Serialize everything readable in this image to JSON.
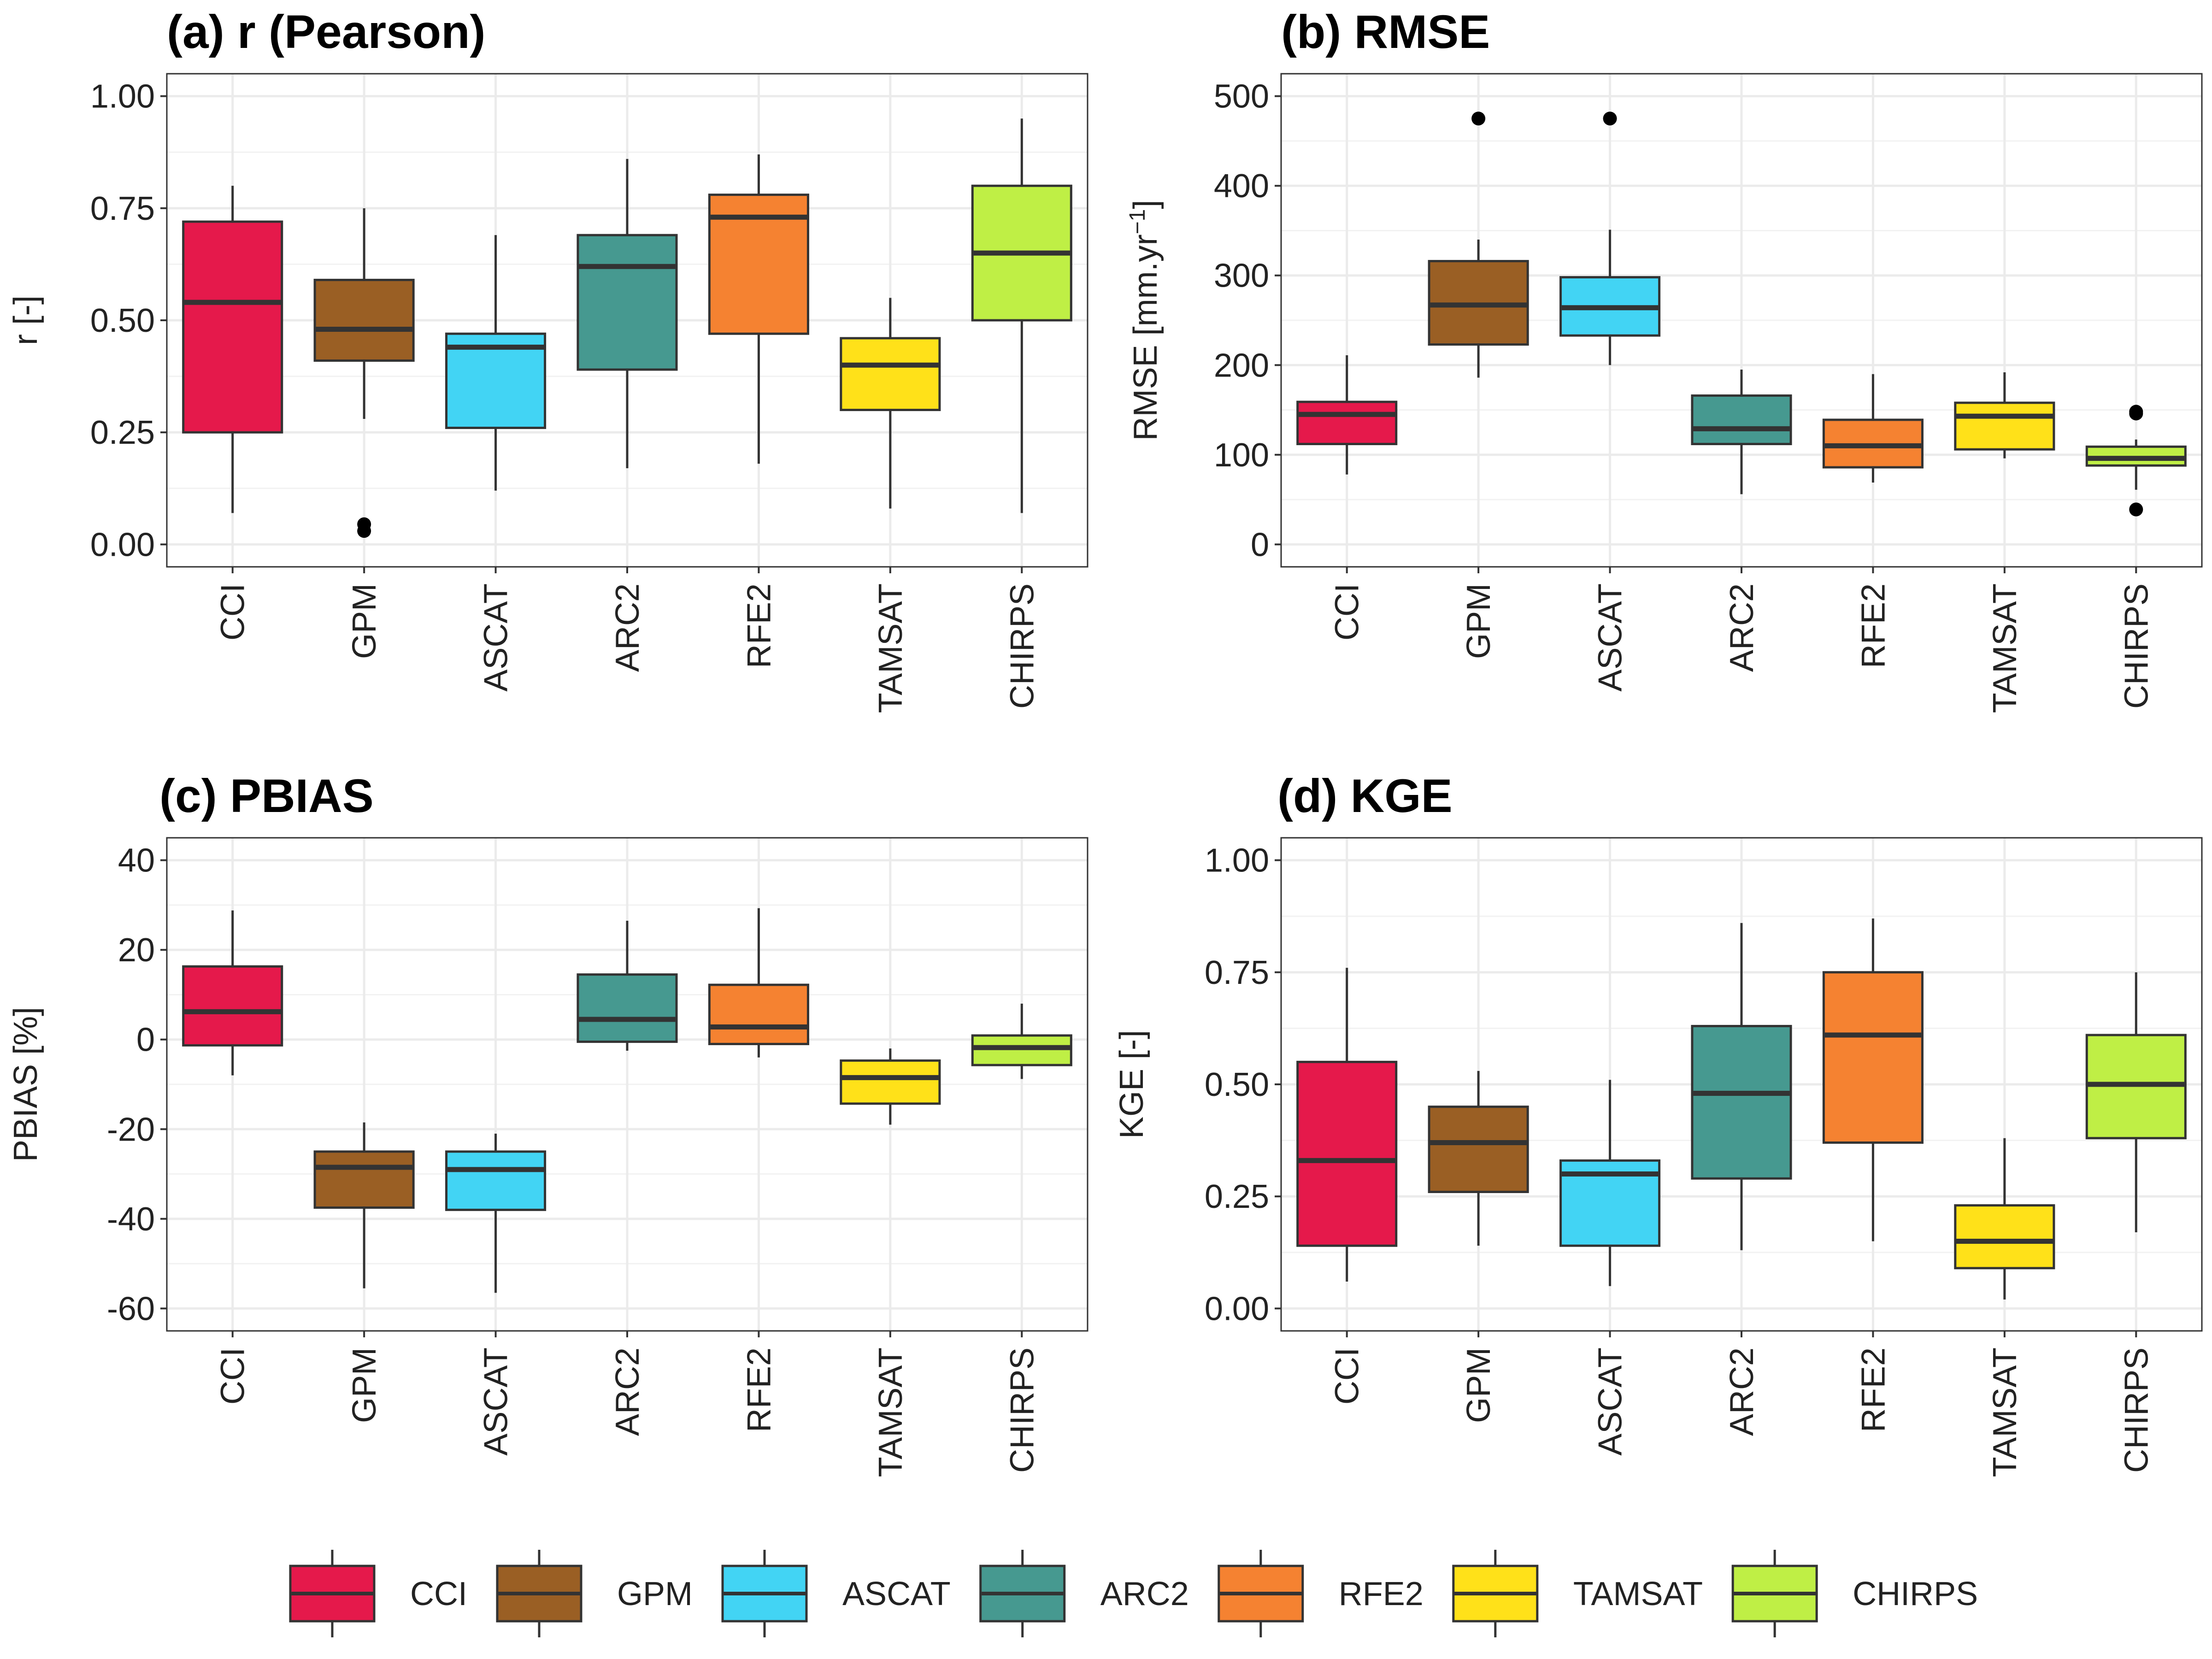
{
  "chart_data": [
    {
      "type": "box",
      "title": "(a) r (Pearson)",
      "xlabel": "",
      "ylabel": "r [-]",
      "ylim": [
        -0.05,
        1.05
      ],
      "yticks": [
        0.0,
        0.25,
        0.5,
        0.75,
        1.0
      ],
      "ytick_labels": [
        "0.00",
        "0.25",
        "0.50",
        "0.75",
        "1.00"
      ],
      "grid": true,
      "categories": [
        "CCI",
        "GPM",
        "ASCAT",
        "ARC2",
        "RFE2",
        "TAMSAT",
        "CHIRPS"
      ],
      "boxes": [
        {
          "min": 0.07,
          "q1": 0.25,
          "median": 0.54,
          "q3": 0.72,
          "max": 0.8,
          "outliers": []
        },
        {
          "min": 0.28,
          "q1": 0.41,
          "median": 0.48,
          "q3": 0.59,
          "max": 0.75,
          "outliers": [
            0.03,
            0.045
          ]
        },
        {
          "min": 0.12,
          "q1": 0.26,
          "median": 0.44,
          "q3": 0.47,
          "max": 0.69,
          "outliers": []
        },
        {
          "min": 0.17,
          "q1": 0.39,
          "median": 0.62,
          "q3": 0.69,
          "max": 0.86,
          "outliers": []
        },
        {
          "min": 0.18,
          "q1": 0.47,
          "median": 0.73,
          "q3": 0.78,
          "max": 0.87,
          "outliers": []
        },
        {
          "min": 0.08,
          "q1": 0.3,
          "median": 0.4,
          "q3": 0.46,
          "max": 0.55,
          "outliers": []
        },
        {
          "min": 0.07,
          "q1": 0.5,
          "median": 0.65,
          "q3": 0.8,
          "max": 0.95,
          "outliers": []
        }
      ]
    },
    {
      "type": "box",
      "title": "(b) RMSE",
      "xlabel": "",
      "ylabel": "RMSE [mm.yr",
      "ylabel_sup": "−1",
      "ylabel_end": "]",
      "ylim": [
        -25,
        525
      ],
      "yticks": [
        0,
        100,
        200,
        300,
        400,
        500
      ],
      "ytick_labels": [
        "0",
        "100",
        "200",
        "300",
        "400",
        "500"
      ],
      "grid": true,
      "categories": [
        "CCI",
        "GPM",
        "ASCAT",
        "ARC2",
        "RFE2",
        "TAMSAT",
        "CHIRPS"
      ],
      "boxes": [
        {
          "min": 78,
          "q1": 112,
          "median": 145,
          "q3": 159,
          "max": 211,
          "outliers": []
        },
        {
          "min": 186,
          "q1": 223,
          "median": 267,
          "q3": 316,
          "max": 340,
          "outliers": [
            475
          ]
        },
        {
          "min": 200,
          "q1": 233,
          "median": 264,
          "q3": 298,
          "max": 351,
          "outliers": [
            475
          ]
        },
        {
          "min": 56,
          "q1": 112,
          "median": 129,
          "q3": 166,
          "max": 195,
          "outliers": []
        },
        {
          "min": 69,
          "q1": 86,
          "median": 110,
          "q3": 139,
          "max": 190,
          "outliers": []
        },
        {
          "min": 96,
          "q1": 106,
          "median": 143,
          "q3": 158,
          "max": 192,
          "outliers": []
        },
        {
          "min": 61,
          "q1": 88,
          "median": 96,
          "q3": 109,
          "max": 117,
          "outliers": [
            146,
            148,
            39
          ]
        }
      ]
    },
    {
      "type": "box",
      "title": "(c) PBIAS",
      "xlabel": "",
      "ylabel": "PBIAS [%]",
      "ylim": [
        -65,
        45
      ],
      "yticks": [
        -60,
        -40,
        -20,
        0,
        20,
        40
      ],
      "ytick_labels": [
        "-60",
        "-40",
        "-20",
        "0",
        "20",
        "40"
      ],
      "grid": true,
      "categories": [
        "CCI",
        "GPM",
        "ASCAT",
        "ARC2",
        "RFE2",
        "TAMSAT",
        "CHIRPS"
      ],
      "boxes": [
        {
          "min": -8,
          "q1": -1.3,
          "median": 6.2,
          "q3": 16.3,
          "max": 28.8,
          "outliers": []
        },
        {
          "min": -55.5,
          "q1": -37.5,
          "median": -28.5,
          "q3": -25,
          "max": -18.5,
          "outliers": []
        },
        {
          "min": -56.5,
          "q1": -38,
          "median": -29,
          "q3": -25,
          "max": -21,
          "outliers": []
        },
        {
          "min": -2.5,
          "q1": -0.5,
          "median": 4.5,
          "q3": 14.5,
          "max": 26.5,
          "outliers": []
        },
        {
          "min": -4,
          "q1": -1,
          "median": 2.8,
          "q3": 12.2,
          "max": 29.3,
          "outliers": []
        },
        {
          "min": -19,
          "q1": -14.3,
          "median": -8.5,
          "q3": -4.7,
          "max": -2,
          "outliers": []
        },
        {
          "min": -8.8,
          "q1": -5.7,
          "median": -1.8,
          "q3": 0.9,
          "max": 8,
          "outliers": []
        }
      ]
    },
    {
      "type": "box",
      "title": "(d) KGE",
      "xlabel": "",
      "ylabel": "KGE [-]",
      "ylim": [
        -0.05,
        1.05
      ],
      "yticks": [
        0.0,
        0.25,
        0.5,
        0.75,
        1.0
      ],
      "ytick_labels": [
        "0.00",
        "0.25",
        "0.50",
        "0.75",
        "1.00"
      ],
      "grid": true,
      "categories": [
        "CCI",
        "GPM",
        "ASCAT",
        "ARC2",
        "RFE2",
        "TAMSAT",
        "CHIRPS"
      ],
      "boxes": [
        {
          "min": 0.06,
          "q1": 0.14,
          "median": 0.33,
          "q3": 0.55,
          "max": 0.76,
          "outliers": []
        },
        {
          "min": 0.14,
          "q1": 0.26,
          "median": 0.37,
          "q3": 0.45,
          "max": 0.53,
          "outliers": []
        },
        {
          "min": 0.05,
          "q1": 0.14,
          "median": 0.3,
          "q3": 0.33,
          "max": 0.51,
          "outliers": []
        },
        {
          "min": 0.13,
          "q1": 0.29,
          "median": 0.48,
          "q3": 0.63,
          "max": 0.86,
          "outliers": []
        },
        {
          "min": 0.15,
          "q1": 0.37,
          "median": 0.61,
          "q3": 0.75,
          "max": 0.87,
          "outliers": []
        },
        {
          "min": 0.02,
          "q1": 0.09,
          "median": 0.15,
          "q3": 0.23,
          "max": 0.38,
          "outliers": []
        },
        {
          "min": 0.17,
          "q1": 0.38,
          "median": 0.5,
          "q3": 0.61,
          "max": 0.75,
          "outliers": []
        }
      ]
    }
  ],
  "legend": {
    "position": "bottom",
    "items": [
      {
        "label": "CCI",
        "color": "#E5194B"
      },
      {
        "label": "GPM",
        "color": "#9A5F24"
      },
      {
        "label": "ASCAT",
        "color": "#42D4F4"
      },
      {
        "label": "ARC2",
        "color": "#469990"
      },
      {
        "label": "RFE2",
        "color": "#F58231"
      },
      {
        "label": "TAMSAT",
        "color": "#FFE119"
      },
      {
        "label": "CHIRPS",
        "color": "#BFEF45"
      }
    ]
  }
}
